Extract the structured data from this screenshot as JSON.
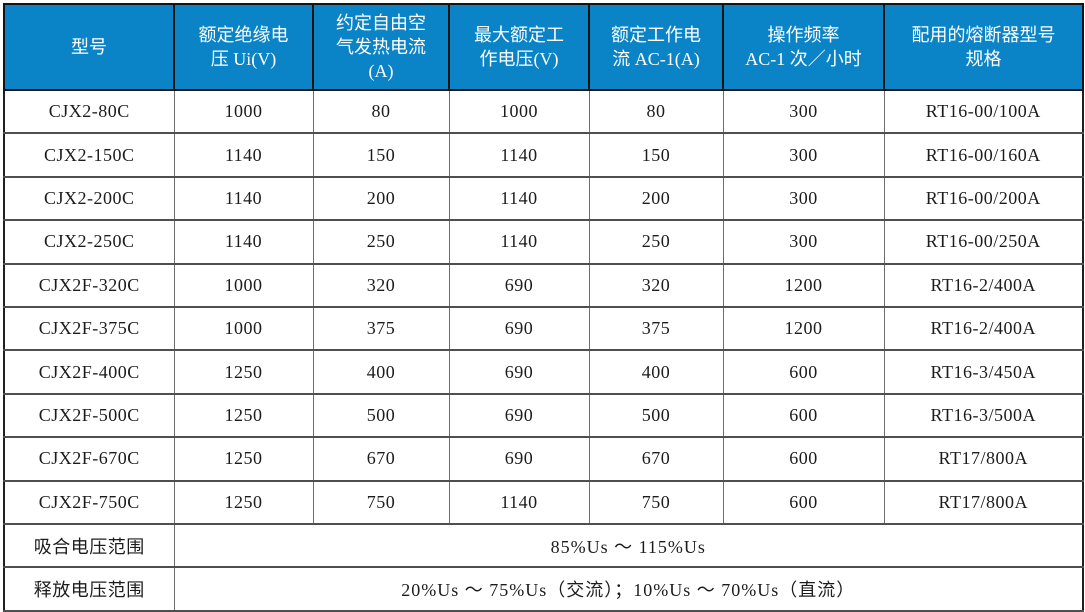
{
  "colors": {
    "header_bg": "#0a84c6",
    "header_text": "#ffffff",
    "outer_border": "#1f1f1f",
    "inner_border": "#6e6e6e",
    "body_text": "#1c1c1c"
  },
  "table": {
    "header": [
      "型号",
      "额定绝缘电\n压 Ui(V)",
      "约定自由空\n气发热电流\n(A)",
      "最大额定工\n作电压(V)",
      "额定工作电\n流 AC-1(A)",
      "操作频率\nAC-1 次／小时",
      "配用的熔断器型号\n规格"
    ],
    "rows": [
      [
        "CJX2-80C",
        "1000",
        "80",
        "1000",
        "80",
        "300",
        "RT16-00/100A"
      ],
      [
        "CJX2-150C",
        "1140",
        "150",
        "1140",
        "150",
        "300",
        "RT16-00/160A"
      ],
      [
        "CJX2-200C",
        "1140",
        "200",
        "1140",
        "200",
        "300",
        "RT16-00/200A"
      ],
      [
        "CJX2-250C",
        "1140",
        "250",
        "1140",
        "250",
        "300",
        "RT16-00/250A"
      ],
      [
        "CJX2F-320C",
        "1000",
        "320",
        "690",
        "320",
        "1200",
        "RT16-2/400A"
      ],
      [
        "CJX2F-375C",
        "1000",
        "375",
        "690",
        "375",
        "1200",
        "RT16-2/400A"
      ],
      [
        "CJX2F-400C",
        "1250",
        "400",
        "690",
        "400",
        "600",
        "RT16-3/450A"
      ],
      [
        "CJX2F-500C",
        "1250",
        "500",
        "690",
        "500",
        "600",
        "RT16-3/500A"
      ],
      [
        "CJX2F-670C",
        "1250",
        "670",
        "690",
        "670",
        "600",
        "RT17/800A"
      ],
      [
        "CJX2F-750C",
        "1250",
        "750",
        "1140",
        "750",
        "600",
        "RT17/800A"
      ]
    ],
    "footer_rows": [
      {
        "label": "吸合电压范围",
        "value": "85%Us ～ 115%Us"
      },
      {
        "label": "释放电压范围",
        "value": "20%Us ～ 75%Us（交流）；10%Us ～ 70%Us（直流）"
      }
    ]
  }
}
